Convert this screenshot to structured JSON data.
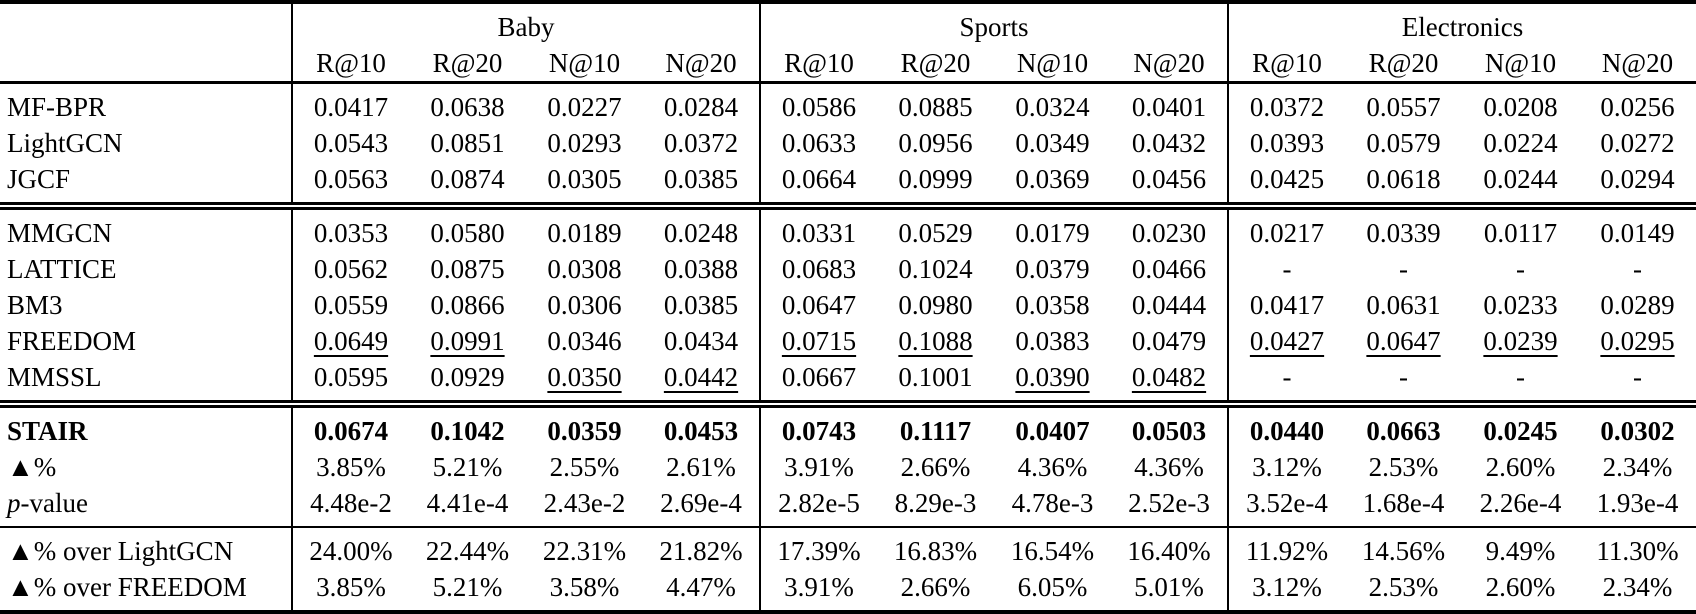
{
  "header": {
    "groups": [
      "Baby",
      "Sports",
      "Electronics"
    ],
    "metric_columns": [
      "R@10",
      "R@20",
      "N@10",
      "N@20",
      "R@10",
      "R@20",
      "N@10",
      "N@20",
      "R@10",
      "R@20",
      "N@10",
      "N@20"
    ]
  },
  "rows": {
    "mf_bpr": {
      "label": "MF-BPR",
      "values": [
        "0.0417",
        "0.0638",
        "0.0227",
        "0.0284",
        "0.0586",
        "0.0885",
        "0.0324",
        "0.0401",
        "0.0372",
        "0.0557",
        "0.0208",
        "0.0256"
      ]
    },
    "lightgcn": {
      "label": "LightGCN",
      "values": [
        "0.0543",
        "0.0851",
        "0.0293",
        "0.0372",
        "0.0633",
        "0.0956",
        "0.0349",
        "0.0432",
        "0.0393",
        "0.0579",
        "0.0224",
        "0.0272"
      ]
    },
    "jgcf": {
      "label": "JGCF",
      "values": [
        "0.0563",
        "0.0874",
        "0.0305",
        "0.0385",
        "0.0664",
        "0.0999",
        "0.0369",
        "0.0456",
        "0.0425",
        "0.0618",
        "0.0244",
        "0.0294"
      ]
    },
    "mmgcn": {
      "label": "MMGCN",
      "values": [
        "0.0353",
        "0.0580",
        "0.0189",
        "0.0248",
        "0.0331",
        "0.0529",
        "0.0179",
        "0.0230",
        "0.0217",
        "0.0339",
        "0.0117",
        "0.0149"
      ]
    },
    "lattice": {
      "label": "LATTICE",
      "values": [
        "0.0562",
        "0.0875",
        "0.0308",
        "0.0388",
        "0.0683",
        "0.1024",
        "0.0379",
        "0.0466",
        "-",
        "-",
        "-",
        "-"
      ]
    },
    "bm3": {
      "label": "BM3",
      "values": [
        "0.0559",
        "0.0866",
        "0.0306",
        "0.0385",
        "0.0647",
        "0.0980",
        "0.0358",
        "0.0444",
        "0.0417",
        "0.0631",
        "0.0233",
        "0.0289"
      ]
    },
    "freedom": {
      "label": "FREEDOM",
      "values": [
        "0.0649",
        "0.0991",
        "0.0346",
        "0.0434",
        "0.0715",
        "0.1088",
        "0.0383",
        "0.0479",
        "0.0427",
        "0.0647",
        "0.0239",
        "0.0295"
      ]
    },
    "mmssl": {
      "label": "MMSSL",
      "values": [
        "0.0595",
        "0.0929",
        "0.0350",
        "0.0442",
        "0.0667",
        "0.1001",
        "0.0390",
        "0.0482",
        "-",
        "-",
        "-",
        "-"
      ]
    },
    "stair": {
      "label": "STAIR",
      "values": [
        "0.0674",
        "0.1042",
        "0.0359",
        "0.0453",
        "0.0743",
        "0.1117",
        "0.0407",
        "0.0503",
        "0.0440",
        "0.0663",
        "0.0245",
        "0.0302"
      ]
    },
    "improve": {
      "label": "▲%",
      "values": [
        "3.85%",
        "5.21%",
        "2.55%",
        "2.61%",
        "3.91%",
        "2.66%",
        "4.36%",
        "4.36%",
        "3.12%",
        "2.53%",
        "2.60%",
        "2.34%"
      ]
    },
    "p_value": {
      "label_p": "p",
      "label_rest": "-value",
      "values": [
        "4.48e-2",
        "4.41e-4",
        "2.43e-2",
        "2.69e-4",
        "2.82e-5",
        "8.29e-3",
        "4.78e-3",
        "2.52e-3",
        "3.52e-4",
        "1.68e-4",
        "2.26e-4",
        "1.93e-4"
      ]
    },
    "over_lightgcn": {
      "label": "▲% over LightGCN",
      "values": [
        "24.00%",
        "22.44%",
        "22.31%",
        "21.82%",
        "17.39%",
        "16.83%",
        "16.54%",
        "16.40%",
        "11.92%",
        "14.56%",
        "9.49%",
        "11.30%"
      ]
    },
    "over_freedom": {
      "label": "▲% over FREEDOM",
      "values": [
        "3.85%",
        "5.21%",
        "3.58%",
        "4.47%",
        "3.91%",
        "2.66%",
        "6.05%",
        "5.01%",
        "3.12%",
        "2.53%",
        "2.60%",
        "2.34%"
      ]
    }
  },
  "colors": {
    "text": "#000000",
    "background": "#ffffff",
    "rule": "#000000"
  }
}
